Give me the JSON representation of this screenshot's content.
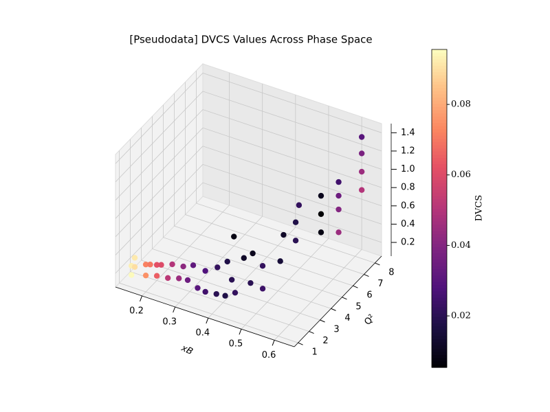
{
  "chart_data": {
    "type": "scatter3d",
    "title": "[Pseudodata] DVCS Values Across Phase Space",
    "xlabel": "xB",
    "ylabel": "Q²",
    "colorbar_label": "DVCS",
    "colormap": "magma",
    "grid": true,
    "x": [
      0.15,
      0.15,
      0.15,
      0.15,
      0.19,
      0.19,
      0.19,
      0.22,
      0.22,
      0.22,
      0.25,
      0.25,
      0.28,
      0.28,
      0.3,
      0.3,
      0.33,
      0.33,
      0.35,
      0.36,
      0.38,
      0.38,
      0.4,
      0.4,
      0.42,
      0.42,
      0.44,
      0.45,
      0.46,
      0.48,
      0.5,
      0.5,
      0.52,
      0.52,
      0.52,
      0.58,
      0.58,
      0.58,
      0.6,
      0.6,
      0.6,
      0.6,
      0.62,
      0.62,
      0.62,
      0.62,
      0.35
    ],
    "y": [
      1.2,
      1.2,
      1.5,
      1.5,
      1.3,
      1.3,
      1.7,
      1.4,
      1.4,
      1.8,
      1.5,
      1.9,
      1.6,
      2.0,
      1.8,
      2.3,
      1.8,
      2.5,
      1.9,
      2.7,
      2.0,
      3.0,
      2.2,
      2.8,
      3.3,
      2.5,
      3.5,
      3.0,
      3.8,
      3.2,
      4.2,
      4.5,
      5.0,
      5.0,
      5.3,
      5.5,
      5.5,
      5.5,
      6.5,
      6.5,
      6.5,
      6.5,
      8.0,
      8.0,
      8.0,
      8.0,
      4.5
    ],
    "z": [
      0.15,
      0.25,
      0.3,
      0.2,
      0.18,
      0.3,
      0.25,
      0.2,
      0.32,
      0.27,
      0.2,
      0.3,
      0.22,
      0.3,
      0.2,
      0.3,
      0.15,
      0.25,
      0.12,
      0.3,
      0.12,
      0.35,
      0.1,
      0.2,
      0.4,
      0.12,
      0.45,
      0.2,
      0.3,
      0.15,
      0.35,
      0.6,
      0.5,
      0.7,
      0.85,
      0.6,
      0.8,
      1.0,
      0.5,
      0.75,
      0.9,
      1.05,
      0.8,
      1.0,
      1.2,
      1.38,
      0.4
    ],
    "c": [
      0.095,
      0.093,
      0.092,
      0.09,
      0.075,
      0.072,
      0.07,
      0.065,
      0.062,
      0.06,
      0.052,
      0.05,
      0.045,
      0.042,
      0.035,
      0.032,
      0.03,
      0.028,
      0.025,
      0.022,
      0.02,
      0.018,
      0.018,
      0.02,
      0.012,
      0.022,
      0.01,
      0.02,
      0.022,
      0.024,
      0.015,
      0.012,
      0.02,
      0.018,
      0.022,
      0.008,
      0.005,
      0.01,
      0.045,
      0.04,
      0.035,
      0.025,
      0.05,
      0.045,
      0.038,
      0.03,
      0.008
    ],
    "xlim": [
      0.12,
      0.66
    ],
    "ylim": [
      0.65,
      8.6
    ],
    "zlim": [
      0.05,
      1.5
    ],
    "clim": [
      0.0054,
      0.0956
    ],
    "xticks": [
      0.2,
      0.3,
      0.4,
      0.5,
      0.6
    ],
    "yticks": [
      1,
      2,
      3,
      4,
      5,
      6,
      7,
      8
    ],
    "zticks": [
      0.2,
      0.4,
      0.6,
      0.8,
      {
        "value": 1,
        "label": "1.0"
      },
      1.2,
      1.4
    ],
    "cticks": [
      0.02,
      0.04,
      0.06,
      0.08
    ]
  }
}
